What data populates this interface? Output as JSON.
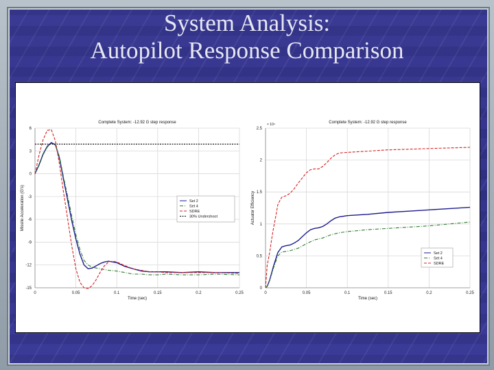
{
  "slide": {
    "title_line1": "System Analysis:",
    "title_line2": "Autopilot Response Comparison",
    "background_color": "#3a3a94",
    "title_color": "#e6e6f4"
  },
  "chart_data": [
    {
      "type": "line",
      "title": "Complete System: -12.92 G step response",
      "xlabel": "Time (sec)",
      "ylabel": "Missile Acceleration (G's)",
      "xlim": [
        0,
        0.25
      ],
      "ylim": [
        -15,
        6
      ],
      "xticks": [
        "0",
        "0.05",
        "0.1",
        "0.15",
        "0.2",
        "0.25"
      ],
      "yticks": [
        "6",
        "3",
        "0",
        "-3",
        "-6",
        "-9",
        "-12",
        "-15"
      ],
      "grid": true,
      "legend_position": "center-right",
      "series": [
        {
          "name": "Set 2",
          "style": "solid",
          "color": "#1a1a8c",
          "x": [
            0,
            0.005,
            0.01,
            0.015,
            0.02,
            0.025,
            0.03,
            0.035,
            0.04,
            0.045,
            0.05,
            0.055,
            0.06,
            0.065,
            0.07,
            0.075,
            0.08,
            0.085,
            0.09,
            0.095,
            0.1,
            0.11,
            0.12,
            0.13,
            0.14,
            0.15,
            0.16,
            0.18,
            0.2,
            0.22,
            0.25
          ],
          "y": [
            0,
            1.2,
            2.6,
            3.6,
            4.1,
            3.8,
            2.0,
            -0.8,
            -3.5,
            -6.2,
            -8.6,
            -10.6,
            -12.0,
            -12.5,
            -12.4,
            -12.1,
            -11.8,
            -11.6,
            -11.5,
            -11.6,
            -11.7,
            -12.2,
            -12.5,
            -12.8,
            -12.9,
            -12.9,
            -12.9,
            -13.0,
            -12.9,
            -13.0,
            -13.0
          ]
        },
        {
          "name": "Set 4",
          "style": "dash-dot",
          "color": "#2a7a2a",
          "x": [
            0,
            0.005,
            0.01,
            0.015,
            0.02,
            0.025,
            0.03,
            0.035,
            0.04,
            0.045,
            0.05,
            0.055,
            0.06,
            0.065,
            0.07,
            0.075,
            0.08,
            0.09,
            0.1,
            0.11,
            0.12,
            0.13,
            0.14,
            0.15,
            0.16,
            0.18,
            0.2,
            0.22,
            0.25
          ],
          "y": [
            0,
            1.1,
            2.5,
            3.5,
            4.0,
            3.8,
            2.2,
            -0.5,
            -3.0,
            -5.6,
            -8.0,
            -10.0,
            -11.4,
            -12.0,
            -12.3,
            -12.4,
            -12.5,
            -12.7,
            -12.8,
            -13.0,
            -13.2,
            -13.2,
            -13.3,
            -13.3,
            -13.2,
            -13.3,
            -13.3,
            -13.2,
            -13.3
          ]
        },
        {
          "name": "SDRE",
          "style": "dashed",
          "color": "#d42020",
          "x": [
            0,
            0.005,
            0.01,
            0.015,
            0.02,
            0.025,
            0.03,
            0.035,
            0.04,
            0.045,
            0.05,
            0.055,
            0.06,
            0.065,
            0.07,
            0.075,
            0.08,
            0.085,
            0.09,
            0.095,
            0.1,
            0.11,
            0.12,
            0.13,
            0.14,
            0.15,
            0.16,
            0.18,
            0.2,
            0.22,
            0.25
          ],
          "y": [
            0,
            2.5,
            4.5,
            5.7,
            5.8,
            4.3,
            1.2,
            -2.5,
            -6.0,
            -9.5,
            -12.5,
            -14.3,
            -15.0,
            -15.1,
            -14.7,
            -13.9,
            -12.9,
            -12.1,
            -11.6,
            -11.5,
            -11.6,
            -12.1,
            -12.5,
            -12.7,
            -12.9,
            -12.9,
            -13.0,
            -13.0,
            -13.0,
            -13.0,
            -13.1
          ]
        },
        {
          "name": "30% Undershoot",
          "style": "dotted",
          "color": "#000000",
          "x": [
            0,
            0.25
          ],
          "y": [
            3.9,
            3.9
          ]
        }
      ]
    },
    {
      "type": "line",
      "title": "Complete System: -12.92 G step response",
      "xlabel": "Time (sec)",
      "ylabel": "Actuator Efficiency",
      "yscale_note": "x 10^4",
      "xlim": [
        0,
        0.25
      ],
      "ylim": [
        0,
        2.5
      ],
      "xticks": [
        "0",
        "0.05",
        "0.1",
        "0.15",
        "0.2",
        "0.25"
      ],
      "yticks": [
        "2.5",
        "2",
        "1.5",
        "1",
        "0.5",
        "0"
      ],
      "grid": true,
      "legend_position": "lower-right",
      "series": [
        {
          "name": "Set 2",
          "style": "solid",
          "color": "#1a1a8c",
          "x": [
            0,
            0.002,
            0.005,
            0.01,
            0.015,
            0.02,
            0.025,
            0.03,
            0.035,
            0.04,
            0.045,
            0.05,
            0.055,
            0.06,
            0.065,
            0.07,
            0.075,
            0.08,
            0.085,
            0.09,
            0.1,
            0.125,
            0.15,
            0.175,
            0.2,
            0.225,
            0.25
          ],
          "y": [
            0,
            0.02,
            0.12,
            0.35,
            0.55,
            0.64,
            0.66,
            0.67,
            0.7,
            0.74,
            0.8,
            0.86,
            0.91,
            0.93,
            0.94,
            0.96,
            1.0,
            1.05,
            1.09,
            1.11,
            1.13,
            1.15,
            1.18,
            1.2,
            1.22,
            1.24,
            1.26
          ]
        },
        {
          "name": "Set 4",
          "style": "dash-dot",
          "color": "#2a7a2a",
          "x": [
            0,
            0.002,
            0.005,
            0.01,
            0.015,
            0.02,
            0.025,
            0.03,
            0.04,
            0.05,
            0.06,
            0.07,
            0.08,
            0.09,
            0.1,
            0.125,
            0.15,
            0.175,
            0.2,
            0.225,
            0.25
          ],
          "y": [
            0,
            0.02,
            0.11,
            0.32,
            0.5,
            0.56,
            0.57,
            0.58,
            0.62,
            0.69,
            0.75,
            0.78,
            0.83,
            0.86,
            0.88,
            0.91,
            0.93,
            0.95,
            0.97,
            1.0,
            1.03
          ]
        },
        {
          "name": "SDRE",
          "style": "dashed",
          "color": "#d42020",
          "x": [
            0,
            0.002,
            0.005,
            0.008,
            0.01,
            0.013,
            0.015,
            0.018,
            0.02,
            0.025,
            0.03,
            0.035,
            0.04,
            0.045,
            0.05,
            0.055,
            0.06,
            0.065,
            0.07,
            0.075,
            0.08,
            0.085,
            0.09,
            0.1,
            0.125,
            0.15,
            0.175,
            0.2,
            0.225,
            0.25
          ],
          "y": [
            0,
            0.35,
            0.55,
            0.8,
            0.95,
            1.15,
            1.3,
            1.38,
            1.42,
            1.44,
            1.48,
            1.55,
            1.64,
            1.72,
            1.8,
            1.85,
            1.86,
            1.86,
            1.9,
            1.96,
            2.03,
            2.08,
            2.11,
            2.12,
            2.14,
            2.16,
            2.17,
            2.18,
            2.19,
            2.2
          ]
        }
      ]
    }
  ]
}
